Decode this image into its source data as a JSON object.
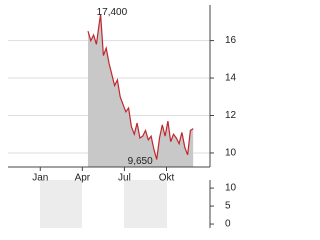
{
  "chart_data": [
    {
      "type": "area",
      "color": "#c0272d",
      "fill": "#c8c8c8",
      "grid": true,
      "x": [
        3.4,
        3.6,
        3.8,
        4.0,
        4.2,
        4.3,
        4.5,
        4.7,
        4.9,
        5.1,
        5.3,
        5.5,
        5.7,
        5.9,
        6.1,
        6.3,
        6.5,
        6.7,
        6.9,
        7.1,
        7.3,
        7.5,
        7.7,
        7.9,
        8.1,
        8.3,
        8.5,
        8.7,
        8.9,
        9.1,
        9.3,
        9.5,
        9.7,
        9.9,
        10.1,
        10.3,
        10.5,
        10.7,
        10.9
      ],
      "values": [
        16.5,
        16.0,
        16.3,
        15.8,
        16.9,
        17.4,
        15.2,
        15.6,
        14.8,
        14.2,
        13.6,
        13.9,
        13.0,
        12.6,
        12.2,
        12.4,
        11.4,
        11.0,
        11.6,
        10.8,
        10.9,
        11.2,
        10.7,
        10.9,
        10.2,
        9.65,
        10.8,
        11.5,
        10.9,
        11.7,
        10.6,
        11.0,
        10.8,
        10.5,
        11.1,
        10.3,
        9.9,
        11.2,
        11.3
      ],
      "xlim": [
        -2.3,
        12.1
      ],
      "xticks": [
        {
          "value": 0,
          "label": "Jan"
        },
        {
          "value": 3,
          "label": "Apr"
        },
        {
          "value": 6,
          "label": "Jul"
        },
        {
          "value": 9,
          "label": "Okt"
        }
      ],
      "ylim": [
        9.25,
        17.9
      ],
      "yticks": [
        10,
        12,
        14,
        16
      ],
      "annotations": [
        {
          "text": "17,400",
          "at": "max"
        },
        {
          "text": "9,650",
          "at": "min"
        }
      ]
    },
    {
      "type": "volume",
      "xlim": [
        -2.3,
        12.1
      ],
      "ylim": [
        -1.1,
        12.8
      ],
      "yticks": [
        10,
        5,
        0
      ]
    }
  ]
}
